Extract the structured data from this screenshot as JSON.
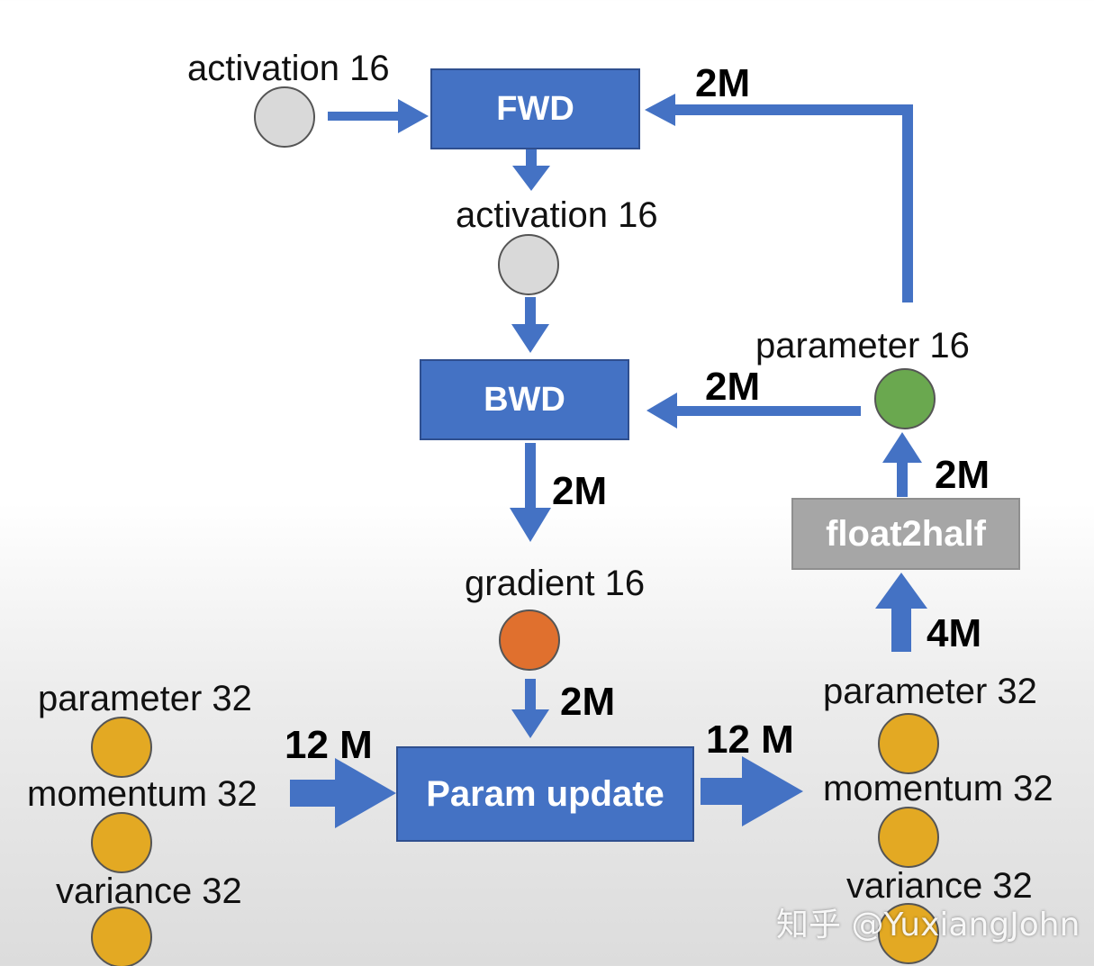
{
  "boxes": {
    "fwd": "FWD",
    "bwd": "BWD",
    "param_update": "Param update",
    "float2half": "float2half"
  },
  "labels": {
    "activation_in": "activation 16",
    "activation_out": "activation 16",
    "gradient": "gradient 16",
    "parameter16": "parameter 16",
    "left_parameter32": "parameter 32",
    "left_momentum32": "momentum 32",
    "left_variance32": "variance 32",
    "right_parameter32": "parameter 32",
    "right_momentum32": "momentum 32",
    "right_variance32": "variance 32"
  },
  "sizes": {
    "param_to_fwd": "2M",
    "param_to_bwd": "2M",
    "bwd_to_gradient": "2M",
    "float2half_to_param16": "2M",
    "param32_to_float2half": "4M",
    "gradient_to_update": "2M",
    "left_states_to_update": "12 M",
    "update_to_right_states": "12 M"
  },
  "colors": {
    "box_blue": "#4472c4",
    "arrow_blue": "#4472c4",
    "box_gray": "#a6a6a6",
    "activation_circle": "#d9d9d9",
    "gradient_circle": "#e0702e",
    "parameter16_circle": "#6aa84f",
    "state32_circle": "#e3a923"
  },
  "watermark": "知乎 @YuxiangJohn"
}
